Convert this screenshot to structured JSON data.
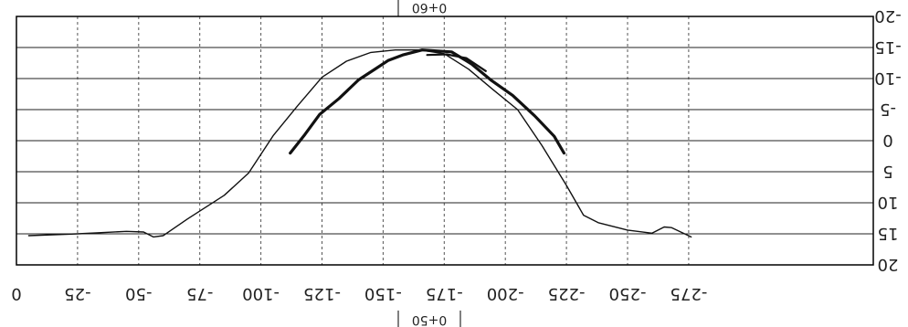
{
  "chart_data": {
    "type": "line",
    "title": "",
    "xlabel": "",
    "ylabel": "",
    "rotation": "180 degrees (image shown upside-down)",
    "xlim": [
      0,
      -275
    ],
    "ylim": [
      20,
      -20
    ],
    "x_ticks": [
      "0",
      "-25",
      "-50",
      "-75",
      "-100",
      "-125",
      "-150",
      "-175",
      "-200",
      "-225",
      "-250",
      "-275"
    ],
    "y_ticks": [
      "20",
      "15",
      "10",
      "5",
      "0",
      "-5",
      "-10",
      "-15",
      "-20"
    ],
    "station_top": "0+60",
    "station_bottom": "0+50",
    "grid": true,
    "legend": "none",
    "series": [
      {
        "color": "#111111",
        "style": "thin",
        "points": [
          [
            -5,
            15.3
          ],
          [
            -25,
            15.0
          ],
          [
            -45,
            14.6
          ],
          [
            -52,
            14.7
          ],
          [
            -56,
            15.5
          ],
          [
            -60,
            15.3
          ],
          [
            -70,
            12.6
          ],
          [
            -85,
            8.8
          ],
          [
            -95,
            5.2
          ],
          [
            -105,
            -0.8
          ],
          [
            -115,
            -5.6
          ],
          [
            -125,
            -10.2
          ],
          [
            -135,
            -12.8
          ],
          [
            -145,
            -14.2
          ],
          [
            -155,
            -14.6
          ],
          [
            -165,
            -14.6
          ],
          [
            -175,
            -14.0
          ],
          [
            -185,
            -11.5
          ],
          [
            -195,
            -8.2
          ],
          [
            -205,
            -5.0
          ],
          [
            -215,
            0.8
          ],
          [
            -225,
            7.2
          ],
          [
            -232,
            12.0
          ],
          [
            -238,
            13.2
          ],
          [
            -250,
            14.4
          ],
          [
            -260,
            14.9
          ],
          [
            -265,
            13.9
          ],
          [
            -268,
            14.0
          ],
          [
            -276,
            15.5
          ]
        ]
      },
      {
        "color": "#111111",
        "style": "thick",
        "points": [
          [
            -112,
            2.0
          ],
          [
            -118,
            -1.0
          ],
          [
            -124,
            -4.2
          ],
          [
            -132,
            -6.8
          ],
          [
            -140,
            -9.8
          ],
          [
            -147,
            -11.6
          ],
          [
            -152,
            -12.9
          ],
          [
            -158,
            -13.8
          ],
          [
            -166,
            -14.6
          ],
          [
            -178,
            -14.3
          ],
          [
            -186,
            -12.4
          ],
          [
            -194,
            -9.8
          ],
          [
            -203,
            -7.3
          ],
          [
            -212,
            -4.0
          ],
          [
            -220,
            -0.7
          ],
          [
            -224,
            2.0
          ]
        ]
      },
      {
        "color": "#111111",
        "style": "medium",
        "points": [
          [
            -168,
            -13.8
          ],
          [
            -176,
            -13.9
          ],
          [
            -184,
            -13.3
          ],
          [
            -192,
            -11.2
          ]
        ]
      }
    ]
  }
}
